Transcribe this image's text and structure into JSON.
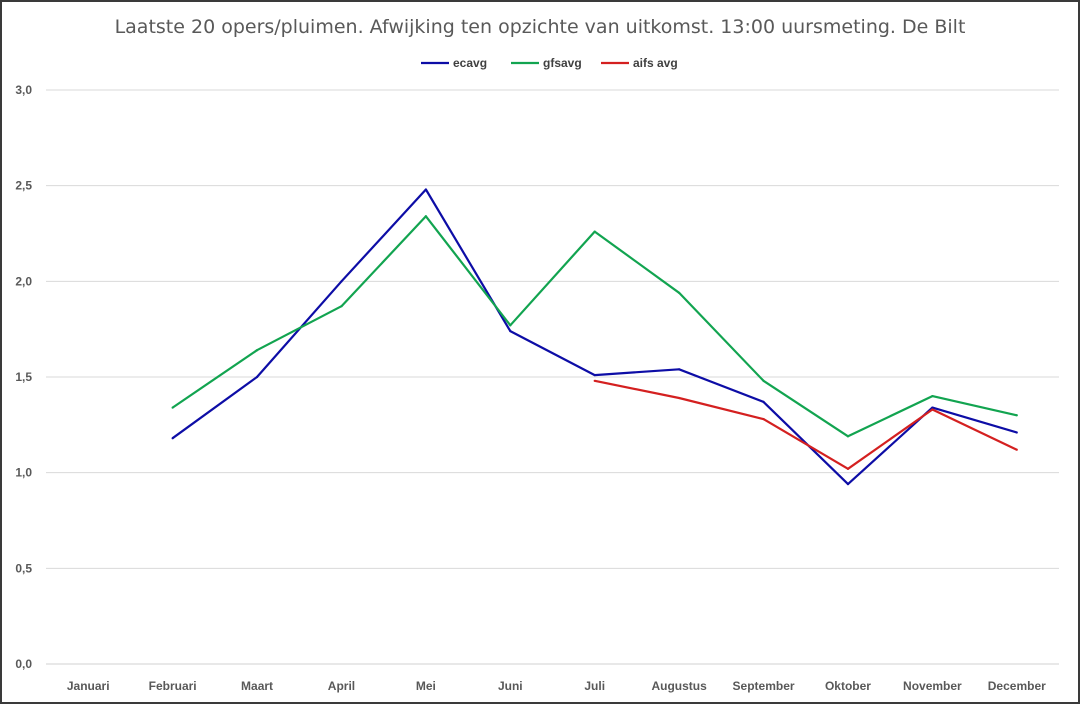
{
  "chart_data": {
    "type": "line",
    "title": "Laatste 20 opers/pluimen. Afwijking ten opzichte van uitkomst. 13:00 uursmeting. De Bilt",
    "categories": [
      "Januari",
      "Februari",
      "Maart",
      "April",
      "Mei",
      "Juni",
      "Juli",
      "Augustus",
      "September",
      "Oktober",
      "November",
      "December"
    ],
    "ylim": [
      0,
      3.0
    ],
    "yticks": [
      "0,0",
      "0,5",
      "1,0",
      "1,5",
      "2,0",
      "2,5",
      "3,0"
    ],
    "ytick_values": [
      0,
      0.5,
      1.0,
      1.5,
      2.0,
      2.5,
      3.0
    ],
    "grid": true,
    "legend_position": "top-center",
    "series": [
      {
        "name": "ecavg",
        "color": "#0d0da6",
        "values": [
          null,
          1.18,
          1.5,
          2.0,
          2.48,
          1.74,
          1.51,
          1.54,
          1.37,
          0.94,
          1.34,
          1.21
        ]
      },
      {
        "name": "gfsavg",
        "color": "#12a450",
        "values": [
          null,
          1.34,
          1.64,
          1.87,
          2.34,
          1.77,
          2.26,
          1.94,
          1.48,
          1.19,
          1.4,
          1.3
        ]
      },
      {
        "name": "aifs avg",
        "color": "#d42020",
        "values": [
          null,
          null,
          null,
          null,
          null,
          null,
          1.48,
          1.39,
          1.28,
          1.02,
          1.33,
          1.12
        ]
      }
    ]
  }
}
